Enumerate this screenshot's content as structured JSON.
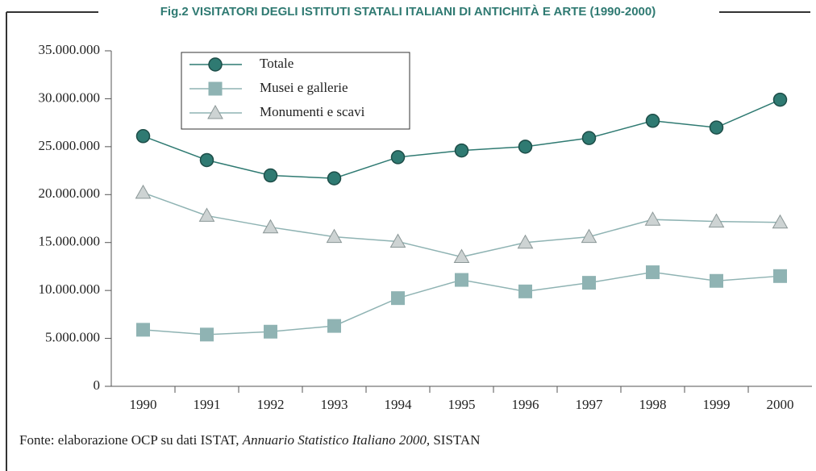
{
  "chart_data": {
    "type": "line",
    "title": "Fig.2 VISITATORI DEGLI ISTITUTI STATALI ITALIANI DI ANTICHITÀ E ARTE (1990-2000)",
    "categories": [
      "1990",
      "1991",
      "1992",
      "1993",
      "1994",
      "1995",
      "1996",
      "1997",
      "1998",
      "1999",
      "2000"
    ],
    "series": [
      {
        "name": "Totale",
        "color": "#2f7a72",
        "marker": "circle",
        "values": [
          26100000,
          23600000,
          22000000,
          21700000,
          23900000,
          24600000,
          25000000,
          25900000,
          27700000,
          27000000,
          29900000
        ]
      },
      {
        "name": "Musei e gallerie",
        "color": "#8fb3b3",
        "marker": "square",
        "values": [
          5900000,
          5400000,
          5700000,
          6300000,
          9200000,
          11100000,
          9900000,
          10800000,
          11900000,
          11000000,
          11500000
        ]
      },
      {
        "name": "Monumenti e scavi",
        "color": "#8fb3b3",
        "marker": "triangle",
        "values": [
          20200000,
          17800000,
          16600000,
          15600000,
          15100000,
          13500000,
          15000000,
          15600000,
          17400000,
          17200000,
          17100000
        ]
      }
    ],
    "ylim": [
      0,
      35000000
    ],
    "yticks": [
      0,
      {
        "value": 5000000,
        "label": "5.000.000"
      },
      {
        "value": 10000000,
        "label": "10.000.000"
      },
      {
        "value": 15000000,
        "label": "15.000.000"
      },
      {
        "value": 20000000,
        "label": "20.000.000"
      },
      {
        "value": 25000000,
        "label": "25.000.000"
      },
      {
        "value": 30000000,
        "label": "30.000.000"
      },
      {
        "value": 35000000,
        "label": "35.000.000"
      }
    ],
    "grid": false,
    "legend": "top-left",
    "source": [
      "Fonte: elaborazione OCP su dati ISTAT,",
      "Annuario Statistico Italiano 2000,",
      "SISTAN"
    ]
  }
}
